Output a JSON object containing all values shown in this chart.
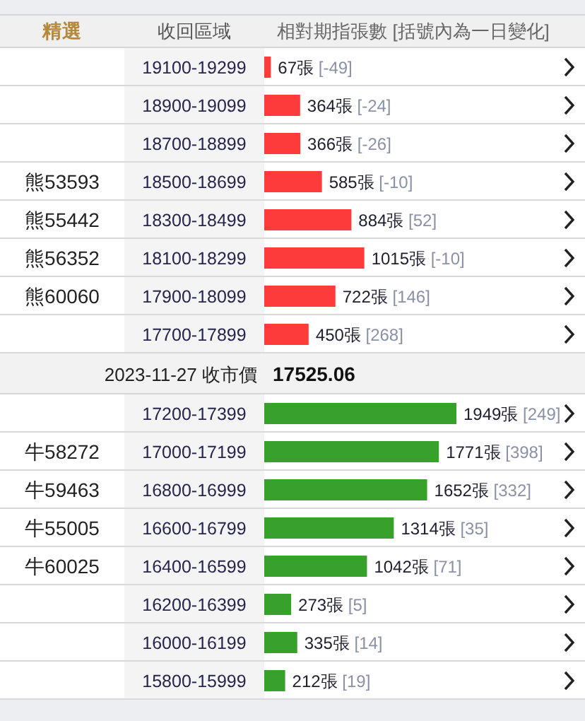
{
  "chart_data": [
    {
      "type": "bar",
      "orientation": "horizontal",
      "title": "精選",
      "ylabel": "收回區域",
      "xlabel": "相對期指張數 [括號內為一日變化]",
      "categories": [
        "19100-19299",
        "18900-19099",
        "18700-18899",
        "18500-18699",
        "18300-18499",
        "18100-18299",
        "17900-18099",
        "17700-17899"
      ],
      "y2_categories": [
        null,
        null,
        null,
        "熊53593",
        "熊55442",
        "熊56352",
        "熊60060",
        null
      ],
      "values": [
        67,
        364,
        366,
        585,
        884,
        1015,
        722,
        450
      ],
      "value_labels": [
        "67張 [-49]",
        "364張 [-24]",
        "366張 [-26]",
        "585張 [-10]",
        "884張 [52]",
        "1015張 [-10]",
        "722張 [146]",
        "450張 [268]"
      ],
      "color": "#fd3b3b"
    },
    {
      "type": "bar",
      "orientation": "horizontal",
      "title": "2023-11-27 收市價",
      "subtitle": "17525.06",
      "categories": [
        "17200-17399",
        "17000-17199",
        "16800-16999",
        "16600-16799",
        "16400-16599",
        "16200-16399",
        "16000-16199",
        "15800-15999"
      ],
      "y2_categories": [
        null,
        "牛58272",
        "牛59463",
        "牛55005",
        "牛60025",
        null,
        null,
        null
      ],
      "values": [
        1949,
        1771,
        1652,
        1314,
        1042,
        273,
        335,
        212
      ],
      "value_labels": [
        "1949張 [249]",
        "1771張 [398]",
        "1652張 [332]",
        "1314張 [35]",
        "1042張 [71]",
        "273張 [5]",
        "335張 [14]",
        "212張 [19]"
      ],
      "color": "#38a12b"
    }
  ]
}
